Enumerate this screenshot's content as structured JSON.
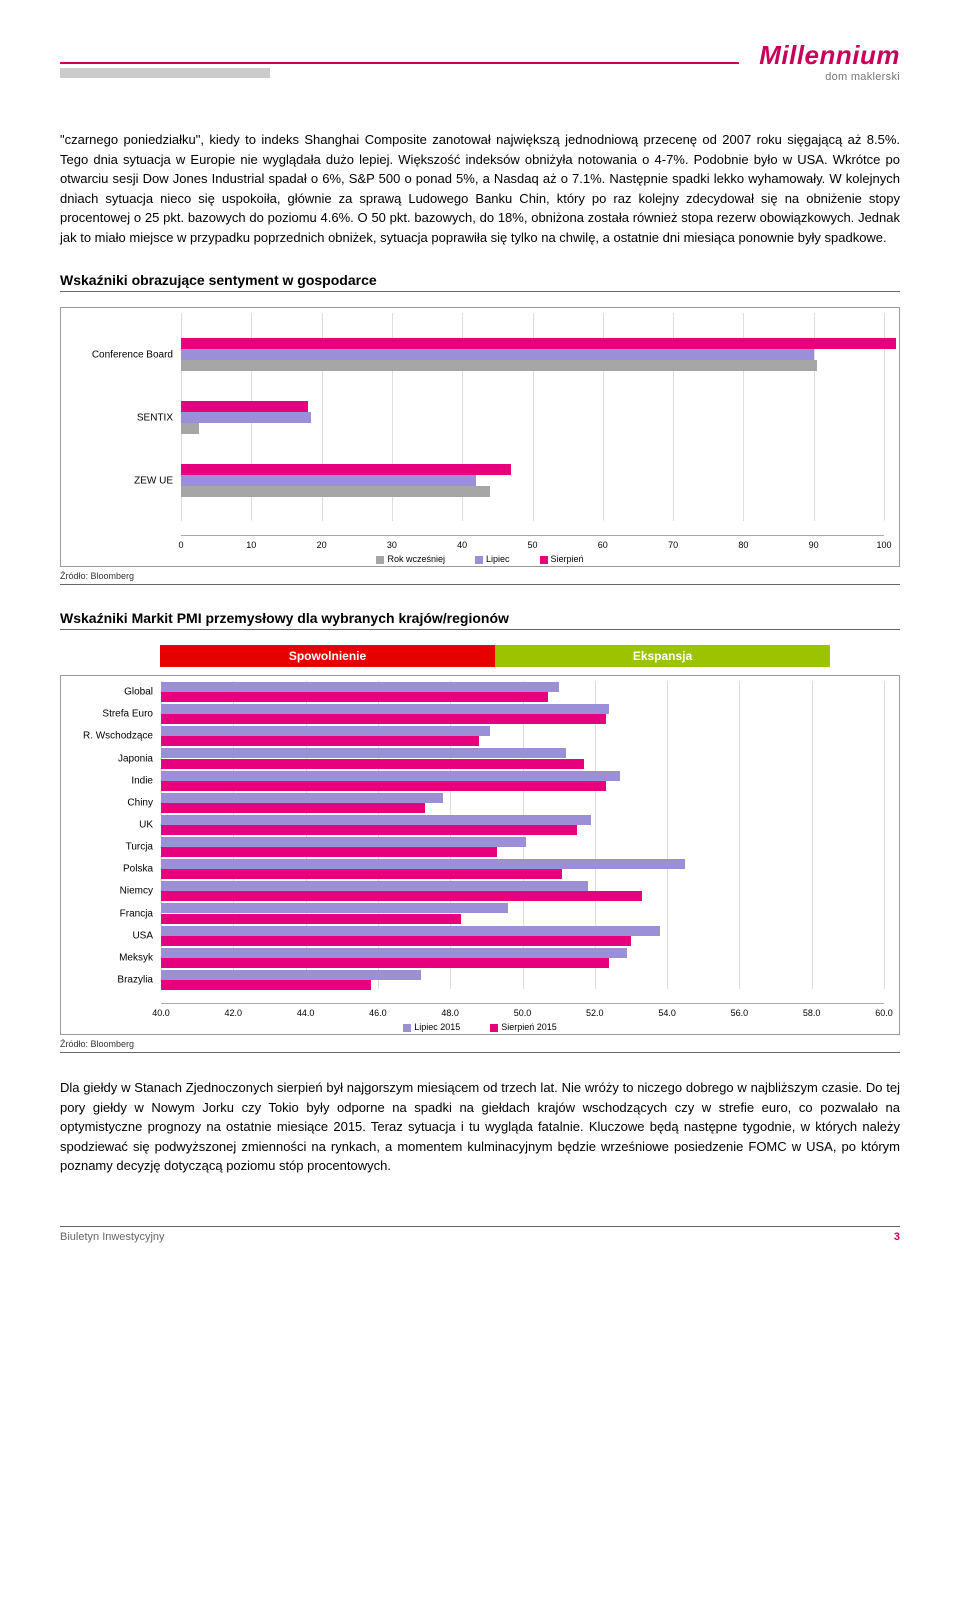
{
  "logo": {
    "main": "Millennium",
    "sub": "dom maklerski"
  },
  "para1": "\"czarnego poniedziałku\", kiedy to indeks Shanghai Composite zanotował największą jednodniową przecenę od 2007 roku sięgającą aż 8.5%. Tego dnia sytuacja w Europie nie wyglądała dużo lepiej. Większość indeksów obniżyła notowania o 4-7%. Podobnie było w USA. Wkrótce po otwarciu sesji Dow Jones Industrial spadał o 6%, S&P 500 o ponad 5%, a Nasdaq aż o 7.1%. Następnie spadki lekko wyhamowały. W kolejnych dniach sytuacja nieco się uspokoiła, głównie za sprawą Ludowego Banku Chin, który po raz kolejny zdecydował się na obniżenie stopy procentowej o 25 pkt. bazowych do poziomu 4.6%. O 50 pkt. bazowych, do 18%, obniżona została również stopa rezerw obowiązkowych. Jednak jak to miało miejsce w przypadku poprzednich obniżek, sytuacja poprawiła się tylko na chwilę, a ostatnie dni miesiąca ponownie były spadkowe.",
  "section1_title": "Wskaźniki obrazujące sentyment w gospodarce",
  "chart1": {
    "xmin": 0,
    "xmax": 100,
    "xstep": 10,
    "groups": [
      {
        "label": "Conference Board",
        "y": 12,
        "bars": [
          {
            "color": "#e6007e",
            "val": 101.5
          },
          {
            "color": "#9b8fd8",
            "val": 90
          },
          {
            "color": "#a6a6a6",
            "val": 90.5
          }
        ]
      },
      {
        "label": "SENTIX",
        "y": 42,
        "bars": [
          {
            "color": "#e6007e",
            "val": 18
          },
          {
            "color": "#9b8fd8",
            "val": 18.5
          },
          {
            "color": "#a6a6a6",
            "val": 2.5
          }
        ]
      },
      {
        "label": "ZEW UE",
        "y": 72,
        "bars": [
          {
            "color": "#e6007e",
            "val": 47
          },
          {
            "color": "#9b8fd8",
            "val": 42
          },
          {
            "color": "#a6a6a6",
            "val": 44
          }
        ]
      }
    ],
    "legend": [
      {
        "color": "#a6a6a6",
        "label": "Rok wcześniej"
      },
      {
        "color": "#9b8fd8",
        "label": "Lipiec"
      },
      {
        "color": "#e6007e",
        "label": "Sierpień"
      }
    ]
  },
  "source1": "Źródło: Bloomberg",
  "section2_title": "Wskaźniki Markit PMI przemysłowy dla wybranych krajów/regionów",
  "pmi_left": "Spowolnienie",
  "pmi_left_color": "#e60000",
  "pmi_right": "Ekspansja",
  "pmi_right_color": "#9cc300",
  "chart2": {
    "xmin": 40,
    "xmax": 60,
    "xstep": 2,
    "series_colors": {
      "lipiec": "#9b8fd8",
      "sierpien": "#e6007e"
    },
    "rows": [
      {
        "label": "Global",
        "lipiec": 51.0,
        "sierpien": 50.7
      },
      {
        "label": "Strefa Euro",
        "lipiec": 52.4,
        "sierpien": 52.3
      },
      {
        "label": "R. Wschodzące",
        "lipiec": 49.1,
        "sierpien": 48.8
      },
      {
        "label": "Japonia",
        "lipiec": 51.2,
        "sierpien": 51.7
      },
      {
        "label": "Indie",
        "lipiec": 52.7,
        "sierpien": 52.3
      },
      {
        "label": "Chiny",
        "lipiec": 47.8,
        "sierpien": 47.3
      },
      {
        "label": "UK",
        "lipiec": 51.9,
        "sierpien": 51.5
      },
      {
        "label": "Turcja",
        "lipiec": 50.1,
        "sierpien": 49.3
      },
      {
        "label": "Polska",
        "lipiec": 54.5,
        "sierpien": 51.1
      },
      {
        "label": "Niemcy",
        "lipiec": 51.8,
        "sierpien": 53.3
      },
      {
        "label": "Francja",
        "lipiec": 49.6,
        "sierpien": 48.3
      },
      {
        "label": "USA",
        "lipiec": 53.8,
        "sierpien": 53.0
      },
      {
        "label": "Meksyk",
        "lipiec": 52.9,
        "sierpien": 52.4
      },
      {
        "label": "Brazylia",
        "lipiec": 47.2,
        "sierpien": 45.8
      }
    ],
    "legend": [
      {
        "color": "#9b8fd8",
        "label": "Lipiec 2015"
      },
      {
        "color": "#e6007e",
        "label": "Sierpień 2015"
      }
    ]
  },
  "source2": "Źródło: Bloomberg",
  "para2": "Dla giełdy w Stanach Zjednoczonych sierpień był najgorszym miesiącem od trzech lat. Nie wróży to niczego dobrego w najbliższym czasie. Do tej pory giełdy w Nowym Jorku czy Tokio były odporne na spadki na giełdach krajów wschodzących czy w strefie euro, co pozwalało na optymistyczne prognozy na ostatnie miesiące 2015. Teraz sytuacja i tu wygląda fatalnie. Kluczowe będą następne tygodnie, w których należy spodziewać się podwyższonej zmienności na rynkach, a momentem kulminacyjnym będzie wrześniowe posiedzenie FOMC w USA, po którym poznamy decyzję dotyczącą poziomu stóp procentowych.",
  "footer": {
    "title": "Biuletyn Inwestycyjny",
    "page": "3"
  }
}
